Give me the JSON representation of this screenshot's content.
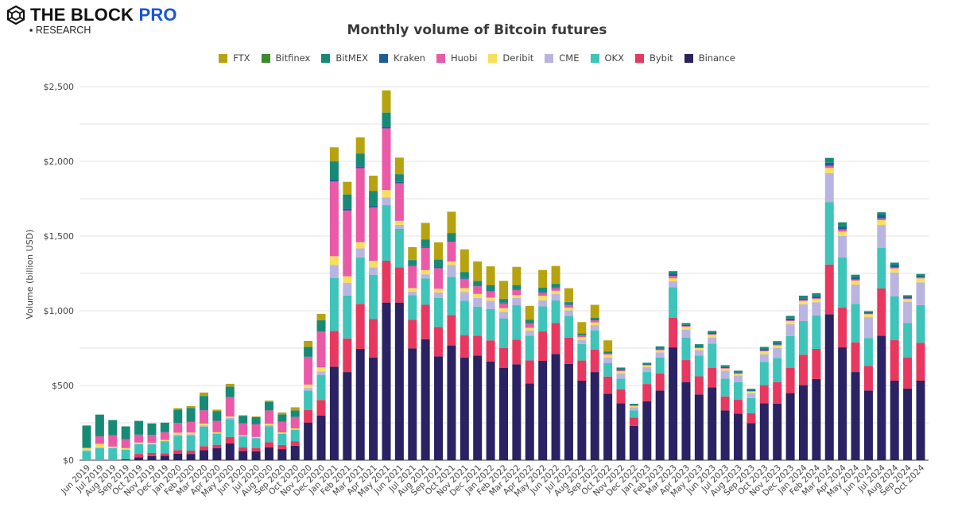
{
  "brand": {
    "name": "THE BLOCK",
    "tier": "PRO",
    "sub": "RESEARCH"
  },
  "chart_data": {
    "type": "bar",
    "stacked": true,
    "title": "Monthly volume of Bitcoin futures",
    "xlabel": "",
    "ylabel": "Volume (billion USD)",
    "ylim": [
      0,
      2500
    ],
    "yticks": [
      "$0",
      "$500",
      "$1,000",
      "$1,500",
      "$2,000",
      "$2,500"
    ],
    "ytick_values": [
      0,
      500,
      1000,
      1500,
      2000,
      2500
    ],
    "grid": true,
    "legend_position": "top",
    "categories": [
      "Jun 2019",
      "Jul 2019",
      "Aug 2019",
      "Sep 2019",
      "Oct 2019",
      "Nov 2019",
      "Dec 2019",
      "Jan 2020",
      "Feb 2020",
      "Mar 2020",
      "Apr 2020",
      "May 2020",
      "Jun 2020",
      "Jul 2020",
      "Aug 2020",
      "Sep 2020",
      "Oct 2020",
      "Nov 2020",
      "Dec 2020",
      "Jan 2021",
      "Feb 2021",
      "Mar 2021",
      "Apr 2021",
      "May 2021",
      "Jun 2021",
      "Jul 2021",
      "Aug 2021",
      "Sep 2021",
      "Oct 2021",
      "Nov 2021",
      "Dec 2021",
      "Jan 2022",
      "Feb 2022",
      "Mar 2022",
      "Apr 2022",
      "May 2022",
      "Jun 2022",
      "Jul 2022",
      "Aug 2022",
      "Sep 2022",
      "Oct 2022",
      "Nov 2022",
      "Dec 2022",
      "Jan 2023",
      "Feb 2023",
      "Mar 2023",
      "Apr 2023",
      "May 2023",
      "Jun 2023",
      "Jul 2023",
      "Aug 2023",
      "Sep 2023",
      "Oct 2023",
      "Nov 2023",
      "Dec 2023",
      "Jan 2024",
      "Feb 2024",
      "Mar 2024",
      "Apr 2024",
      "May 2024",
      "Jun 2024",
      "Jul 2024",
      "Aug 2024",
      "Sep 2024",
      "Oct 2024"
    ],
    "series": [
      {
        "name": "Binance",
        "color": "#2a2262",
        "values": [
          0,
          0,
          0,
          5,
          20,
          28,
          30,
          44,
          42,
          67,
          80,
          112,
          62,
          60,
          85,
          74,
          97,
          252,
          298,
          626,
          590,
          745,
          686,
          1055,
          1055,
          748,
          810,
          695,
          768,
          686,
          700,
          660,
          617,
          642,
          514,
          665,
          711,
          644,
          532,
          590,
          445,
          381,
          230,
          395,
          466,
          755,
          523,
          440,
          488,
          333,
          312,
          248,
          381,
          378,
          449,
          502,
          543,
          977,
          755,
          590,
          466,
          833,
          532,
          479,
          532
        ]
      },
      {
        "name": "Bybit",
        "color": "#e8385f",
        "values": [
          0,
          0,
          0,
          0,
          22,
          20,
          15,
          23,
          22,
          27,
          23,
          44,
          23,
          22,
          35,
          28,
          30,
          85,
          105,
          239,
          225,
          301,
          259,
          280,
          236,
          191,
          230,
          197,
          204,
          151,
          133,
          142,
          133,
          165,
          154,
          197,
          207,
          177,
          135,
          151,
          115,
          94,
          55,
          115,
          115,
          199,
          147,
          121,
          129,
          94,
          92,
          67,
          121,
          145,
          168,
          204,
          202,
          332,
          266,
          199,
          165,
          316,
          271,
          209,
          254
        ]
      },
      {
        "name": "OKX",
        "color": "#3ec4b9",
        "values": [
          62,
          80,
          80,
          65,
          65,
          58,
          80,
          97,
          101,
          131,
          74,
          119,
          74,
          65,
          106,
          74,
          76,
          128,
          168,
          355,
          287,
          310,
          296,
          372,
          257,
          165,
          177,
          195,
          255,
          230,
          195,
          209,
          199,
          230,
          165,
          167,
          151,
          145,
          110,
          128,
          89,
          71,
          48,
          80,
          106,
          204,
          151,
          140,
          163,
          119,
          119,
          101,
          156,
          160,
          213,
          225,
          223,
          417,
          337,
          257,
          186,
          271,
          293,
          230,
          252
        ]
      },
      {
        "name": "CME",
        "color": "#bab4e2",
        "values": [
          5,
          5,
          3,
          3,
          3,
          3,
          3,
          8,
          8,
          8,
          4,
          8,
          3,
          3,
          8,
          4,
          4,
          18,
          23,
          87,
          85,
          62,
          50,
          51,
          27,
          25,
          27,
          35,
          80,
          58,
          58,
          57,
          44,
          48,
          35,
          41,
          44,
          37,
          30,
          35,
          39,
          35,
          21,
          32,
          35,
          39,
          53,
          35,
          41,
          53,
          44,
          32,
          51,
          67,
          80,
          112,
          89,
          195,
          142,
          129,
          140,
          154,
          160,
          142,
          152
        ]
      },
      {
        "name": "Deribit",
        "color": "#f6e05c",
        "values": [
          15,
          25,
          8,
          8,
          8,
          8,
          8,
          12,
          12,
          12,
          6,
          10,
          5,
          5,
          10,
          6,
          6,
          23,
          27,
          58,
          44,
          41,
          43,
          50,
          27,
          23,
          28,
          25,
          23,
          27,
          27,
          20,
          25,
          20,
          18,
          30,
          21,
          18,
          16,
          18,
          18,
          14,
          9,
          12,
          14,
          20,
          18,
          14,
          18,
          14,
          11,
          12,
          20,
          18,
          21,
          23,
          21,
          35,
          30,
          27,
          20,
          32,
          27,
          18,
          27
        ]
      },
      {
        "name": "Huobi",
        "color": "#ea5aa8",
        "values": [
          0,
          50,
          75,
          60,
          53,
          53,
          51,
          65,
          71,
          89,
          76,
          129,
          80,
          85,
          89,
          71,
          76,
          186,
          239,
          500,
          440,
          496,
          358,
          413,
          252,
          147,
          149,
          138,
          133,
          62,
          51,
          43,
          32,
          35,
          27,
          20,
          18,
          18,
          11,
          14,
          9,
          7,
          4,
          4,
          5,
          16,
          6,
          5,
          5,
          4,
          4,
          3,
          5,
          5,
          5,
          6,
          6,
          14,
          14,
          7,
          4,
          12,
          7,
          5,
          7
        ]
      },
      {
        "name": "Kraken",
        "color": "#1b5e98",
        "values": [
          0,
          0,
          0,
          0,
          0,
          0,
          0,
          0,
          0,
          0,
          0,
          0,
          0,
          0,
          0,
          0,
          0,
          0,
          0,
          10,
          12,
          12,
          14,
          12,
          9,
          5,
          5,
          5,
          5,
          5,
          5,
          5,
          4,
          4,
          3,
          4,
          4,
          4,
          3,
          3,
          3,
          9,
          5,
          5,
          7,
          14,
          7,
          7,
          7,
          7,
          7,
          6,
          10,
          10,
          12,
          12,
          13,
          21,
          21,
          18,
          8,
          23,
          18,
          12,
          14
        ]
      },
      {
        "name": "BitMEX",
        "color": "#178a76",
        "values": [
          150,
          145,
          103,
          85,
          92,
          76,
          64,
          90,
          94,
          96,
          66,
          71,
          50,
          48,
          57,
          50,
          44,
          67,
          76,
          124,
          94,
          85,
          94,
          92,
          50,
          35,
          50,
          51,
          51,
          39,
          30,
          35,
          25,
          27,
          23,
          30,
          23,
          14,
          11,
          14,
          9,
          9,
          5,
          9,
          14,
          18,
          13,
          14,
          14,
          12,
          10,
          9,
          14,
          14,
          18,
          17,
          20,
          32,
          27,
          14,
          8,
          18,
          14,
          9,
          8
        ]
      },
      {
        "name": "Bitfinex",
        "color": "#3c8a2c",
        "values": [
          0,
          0,
          0,
          0,
          0,
          0,
          0,
          0,
          0,
          0,
          0,
          0,
          0,
          0,
          0,
          0,
          0,
          0,
          0,
          3,
          3,
          3,
          3,
          3,
          2,
          2,
          2,
          2,
          2,
          2,
          2,
          2,
          2,
          2,
          2,
          2,
          2,
          2,
          2,
          2,
          2,
          0,
          0,
          0,
          0,
          0,
          0,
          0,
          0,
          0,
          0,
          0,
          0,
          0,
          0,
          0,
          0,
          0,
          0,
          0,
          0,
          0,
          0,
          0,
          0
        ]
      },
      {
        "name": "FTX",
        "color": "#b7a30f",
        "values": [
          0,
          0,
          0,
          0,
          0,
          0,
          0,
          9,
          12,
          23,
          9,
          18,
          4,
          5,
          9,
          12,
          21,
          39,
          43,
          92,
          83,
          106,
          101,
          147,
          110,
          85,
          110,
          115,
          142,
          151,
          129,
          124,
          119,
          121,
          92,
          117,
          119,
          92,
          74,
          85,
          73,
          0,
          0,
          0,
          0,
          0,
          0,
          0,
          0,
          0,
          0,
          0,
          0,
          0,
          0,
          0,
          0,
          0,
          0,
          0,
          0,
          0,
          0,
          0,
          0
        ]
      }
    ],
    "legend_order": [
      "FTX",
      "Bitfinex",
      "BitMEX",
      "Kraken",
      "Huobi",
      "Deribit",
      "CME",
      "OKX",
      "Bybit",
      "Binance"
    ]
  }
}
